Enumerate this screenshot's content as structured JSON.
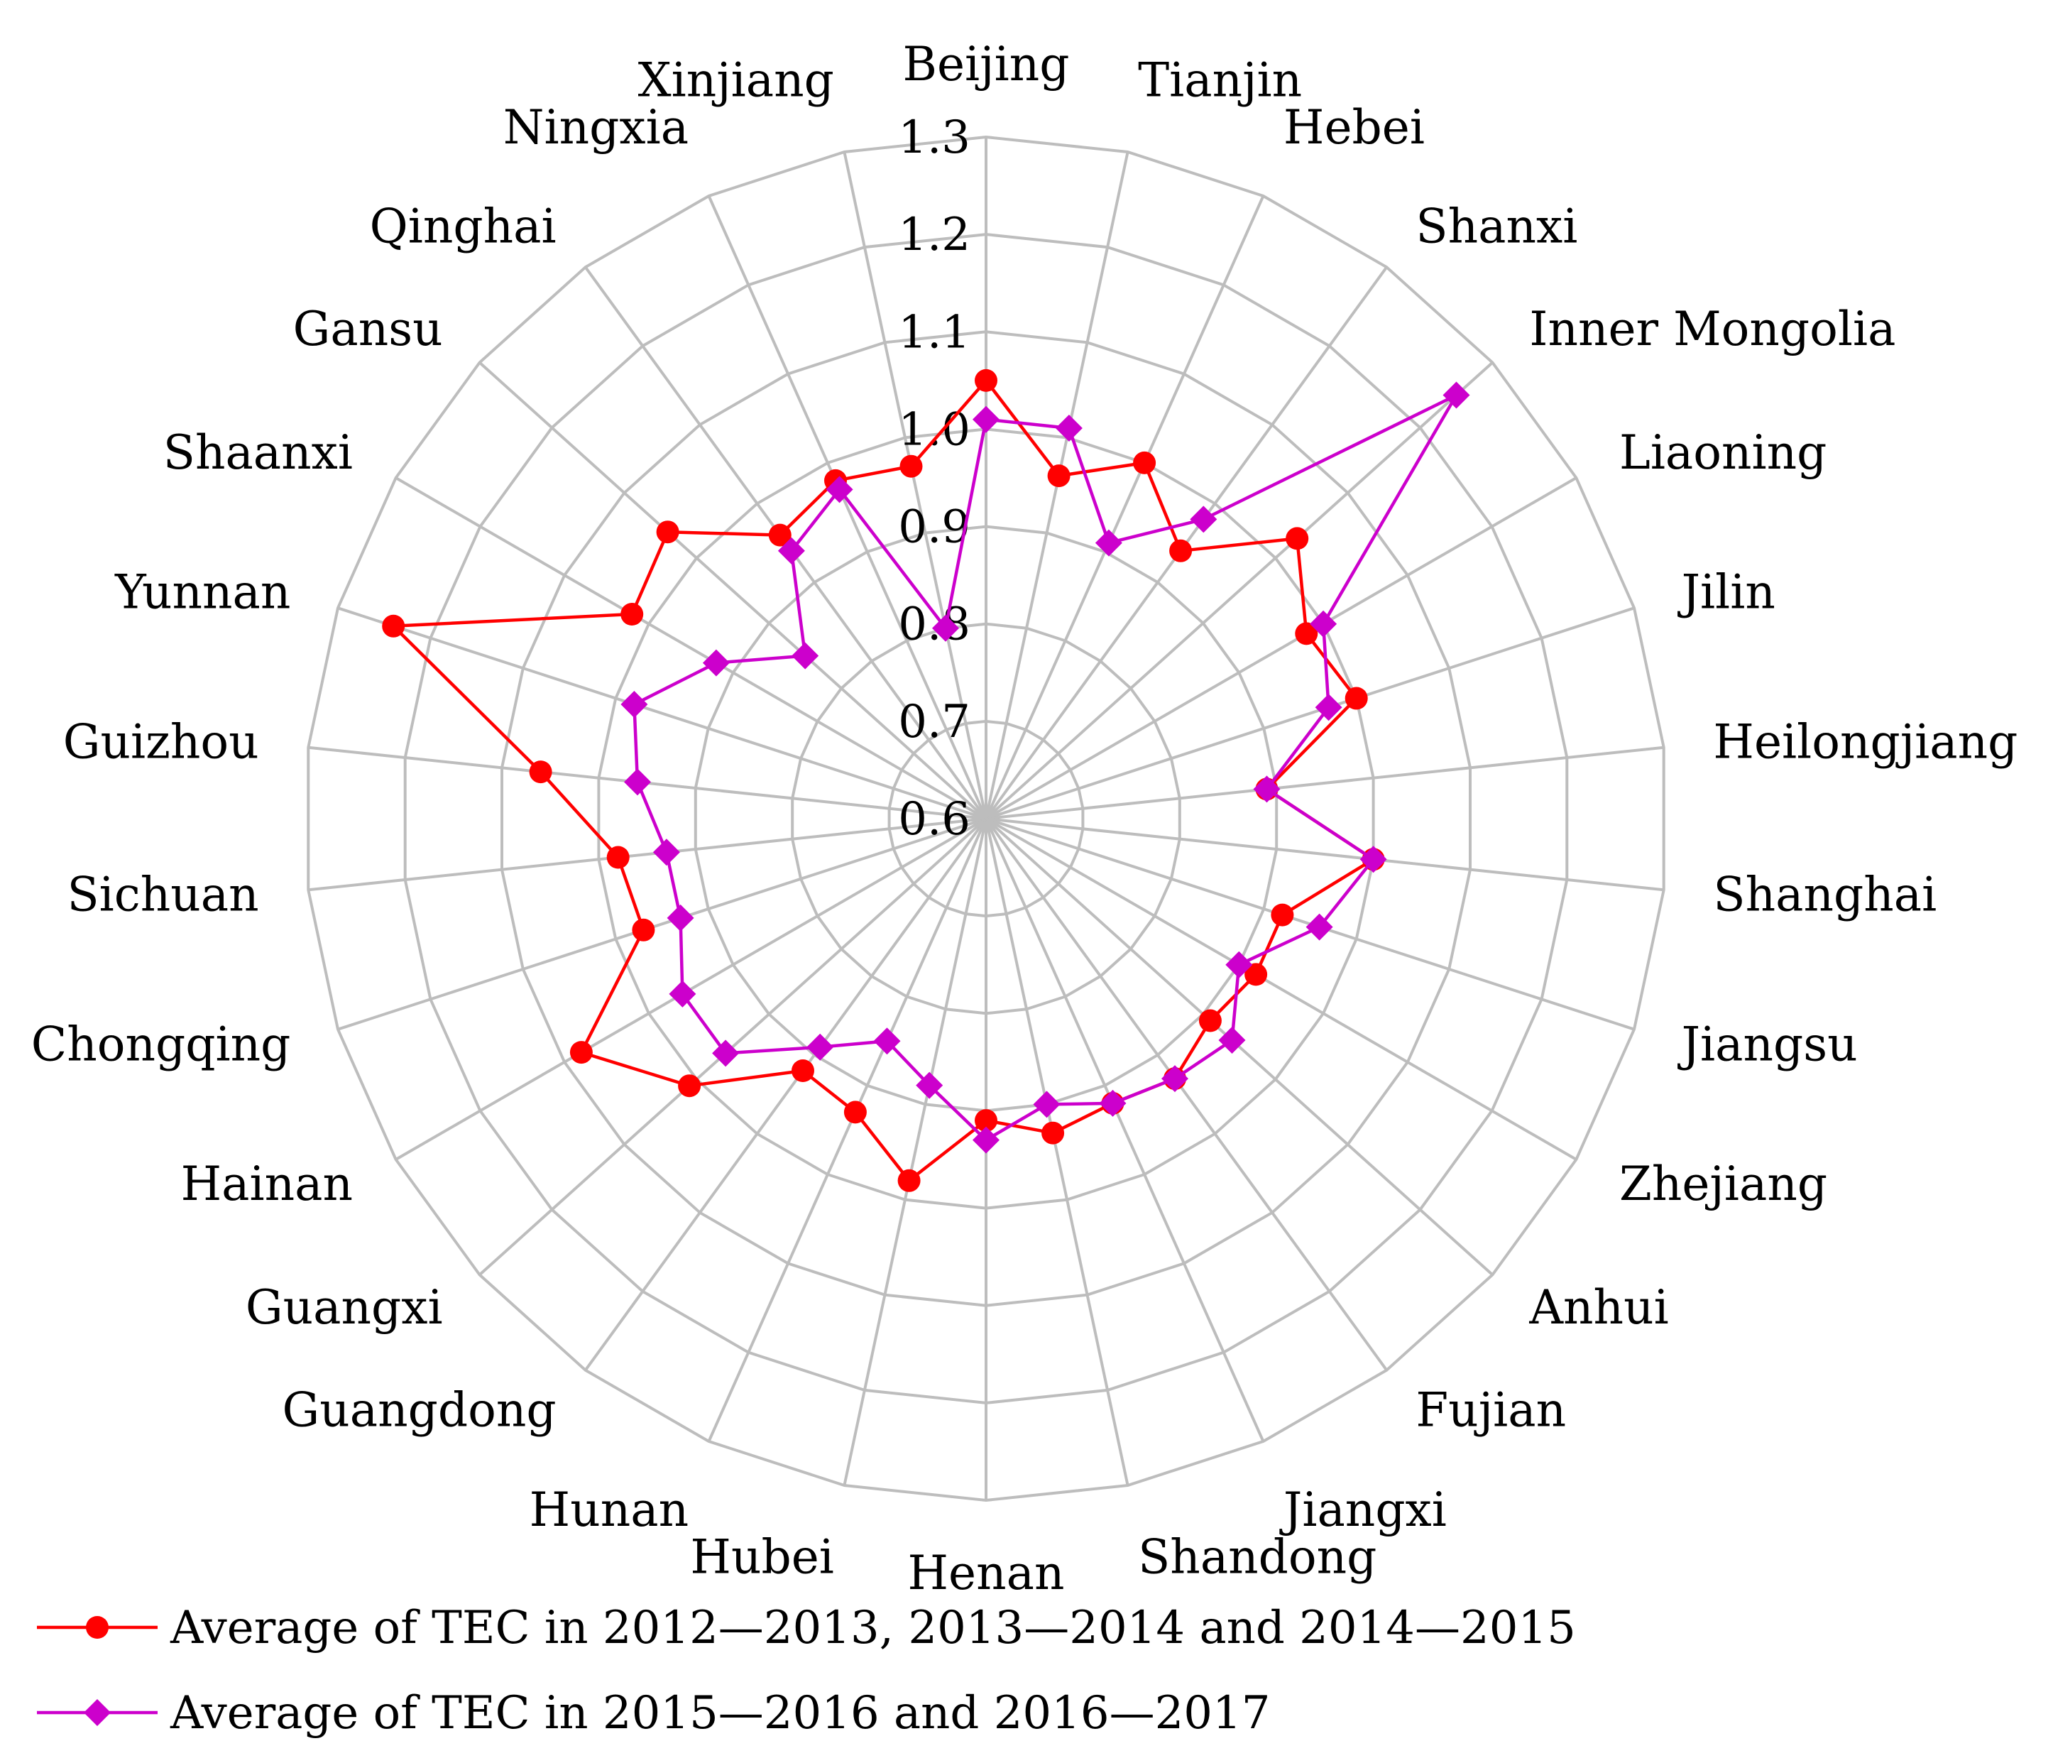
{
  "chart_data": {
    "type": "radar",
    "title": "",
    "categories": [
      "Beijing",
      "Tianjin",
      "Hebei",
      "Shanxi",
      "Inner Mongolia",
      "Liaoning",
      "Jilin",
      "Heilongjiang",
      "Shanghai",
      "Jiangsu",
      "Zhejiang",
      "Anhui",
      "Fujian",
      "Jiangxi",
      "Shandong",
      "Henan",
      "Hubei",
      "Hunan",
      "Guangdong",
      "Guangxi",
      "Hainan",
      "Chongqing",
      "Sichuan",
      "Guizhou",
      "Yunnan",
      "Shaanxi",
      "Gansu",
      "Qinghai",
      "Ningxia",
      "Xinjiang"
    ],
    "r_range": [
      0.6,
      1.3
    ],
    "r_ticks": [
      0.6,
      0.7,
      0.8,
      0.9,
      1.0,
      1.1,
      1.2,
      1.3
    ],
    "r_tick_labels": [
      "0.6",
      "0.7",
      "0.8",
      "0.9",
      "1.0",
      "1.1",
      "1.2",
      "1.3"
    ],
    "grid": true,
    "legend_position": "bottom-left",
    "series": [
      {
        "name": "Average of TEC in 2012—2013, 2013—2014 and 2014—2015",
        "color": "#ff0000",
        "marker": "circle",
        "values": [
          1.05,
          0.96,
          1.0,
          0.94,
          1.03,
          0.98,
          1.0,
          0.89,
          1.0,
          0.92,
          0.92,
          0.91,
          0.93,
          0.92,
          0.93,
          0.91,
          0.98,
          0.93,
          0.92,
          1.01,
          1.08,
          0.97,
          0.98,
          1.06,
          1.24,
          1.02,
          1.04,
          0.96,
          0.98,
          0.97
        ]
      },
      {
        "name": "Average of TEC in 2015—2016 and 2016—2017",
        "color": "#cc00cc",
        "marker": "diamond",
        "values": [
          1.01,
          1.01,
          0.91,
          0.98,
          1.25,
          1.0,
          0.97,
          0.89,
          1.0,
          0.96,
          0.9,
          0.94,
          0.93,
          0.92,
          0.9,
          0.93,
          0.88,
          0.85,
          0.89,
          0.96,
          0.96,
          0.93,
          0.93,
          0.96,
          0.98,
          0.92,
          0.85,
          0.94,
          0.97,
          0.8
        ]
      }
    ]
  }
}
